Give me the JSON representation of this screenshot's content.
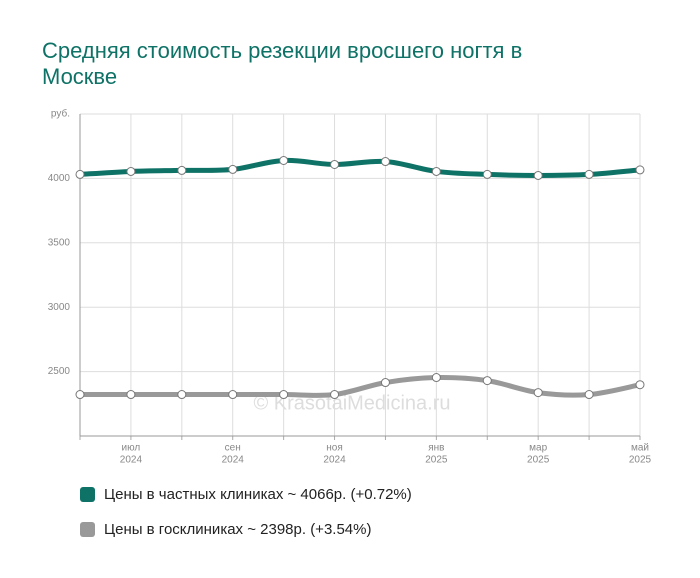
{
  "chart_data": {
    "type": "line",
    "title": "Средняя стоимость резекции вросшего ногтя в Москве",
    "watermark": "© KrasotaiMedicina.ru",
    "categories": [
      null,
      "июл",
      null,
      "сен",
      null,
      "ноя",
      null,
      "янв",
      null,
      "мар",
      null,
      "май"
    ],
    "category_years": [
      null,
      "2024",
      null,
      "2024",
      null,
      "2024",
      null,
      "2025",
      null,
      "2025",
      null,
      "2025"
    ],
    "series": [
      {
        "name": "Цены в частных клиниках ~ 4066р. (+0.72%)",
        "color": "#0e7266",
        "values": [
          4031,
          4054,
          4062,
          4070,
          4139,
          4108,
          4131,
          4054,
          4031,
          4023,
          4031,
          4066
        ]
      },
      {
        "name": "Цены в госклиниках ~ 2398р. (+3.54%)",
        "color": "#999999",
        "values": [
          2322,
          2322,
          2322,
          2322,
          2322,
          2322,
          2415,
          2454,
          2430,
          2337,
          2322,
          2398
        ]
      }
    ],
    "ylim": [
      2000,
      4500
    ],
    "yticks": [
      2500,
      3000,
      3500,
      4000,
      {
        "value": 4500,
        "label": "руб."
      }
    ],
    "grid": true
  }
}
